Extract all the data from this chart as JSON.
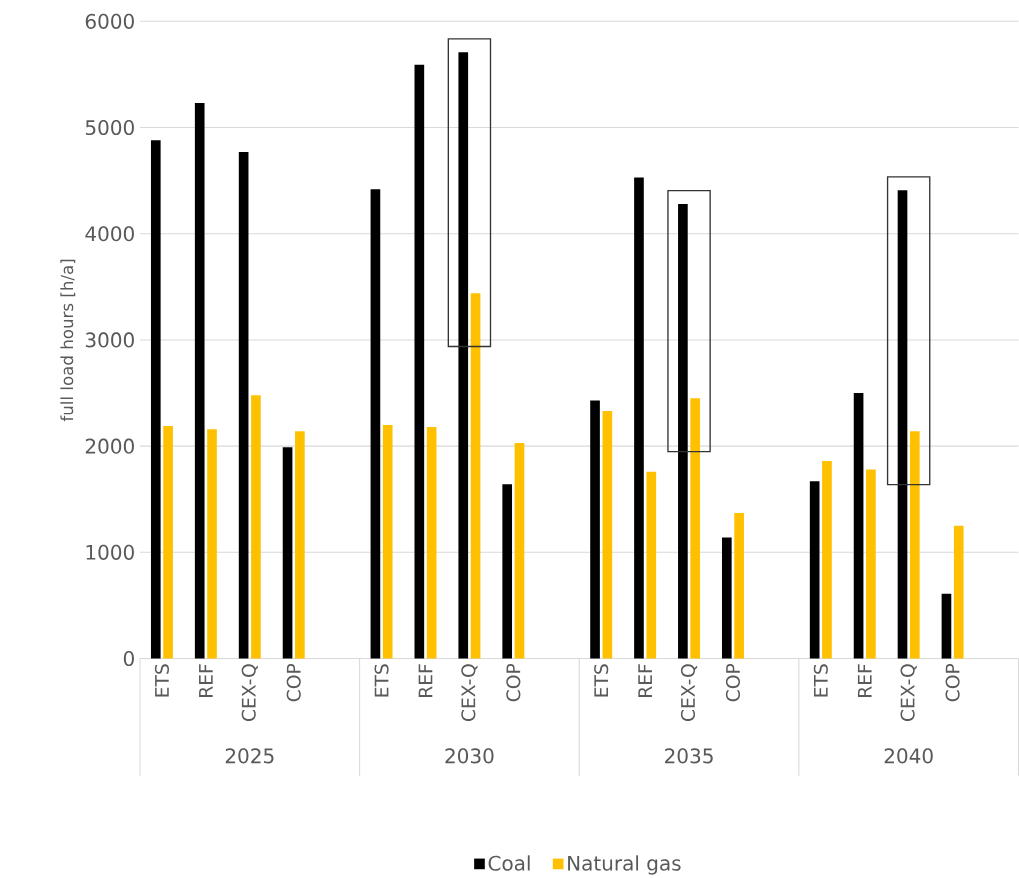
{
  "chart_data": {
    "type": "bar",
    "ylabel": "full load hours [h/a]",
    "categories": [
      "ETS",
      "REF",
      "CEX-Q",
      "COP",
      "ETS",
      "REF",
      "CEX-Q",
      "COP",
      "ETS",
      "REF",
      "CEX-Q",
      "COP",
      "ETS",
      "REF",
      "CEX-Q",
      "COP"
    ],
    "series": [
      {
        "name": "Coal",
        "color": "#000000",
        "values": [
          4880,
          5230,
          4770,
          1990,
          4420,
          5590,
          5710,
          1640,
          2430,
          4530,
          4280,
          1140,
          1670,
          2500,
          4410,
          610
        ]
      },
      {
        "name": "Natural gas",
        "color": "#ffc000",
        "values": [
          2190,
          2160,
          2480,
          2140,
          2200,
          2180,
          3440,
          2030,
          2330,
          1760,
          2450,
          1370,
          1860,
          1780,
          2140,
          1250
        ]
      }
    ],
    "annotations": [
      "2025",
      "2030",
      "2035",
      "2040"
    ],
    "ylim": [
      0,
      6000
    ],
    "yticks": [
      0,
      1000,
      2000,
      3000,
      4000,
      5000,
      6000
    ],
    "grid": "y",
    "legend": "bottom"
  }
}
